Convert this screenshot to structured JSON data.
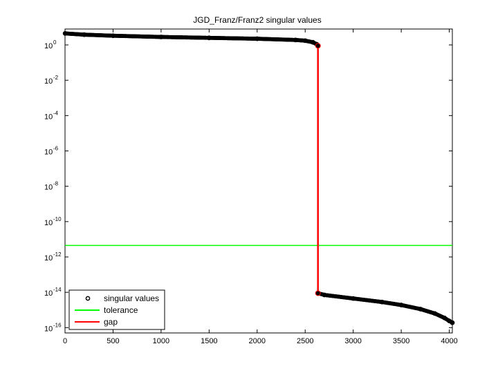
{
  "chart_data": {
    "type": "scatter",
    "title": "JGD_Franz/Franz2 singular values",
    "xlabel": "",
    "ylabel": "",
    "xlim": [
      0,
      4032
    ],
    "ylim_log10": [
      -16.3,
      0.9
    ],
    "y_scale": "log",
    "grid": false,
    "legend_position": "bottom-left",
    "x_ticks": [
      0,
      500,
      1000,
      1500,
      2000,
      2500,
      3000,
      3500,
      4000
    ],
    "x_tick_labels": [
      "0",
      "500",
      "1000",
      "1500",
      "2000",
      "2500",
      "3000",
      "3500",
      "4000"
    ],
    "y_tick_exponents": [
      0,
      -2,
      -4,
      -6,
      -8,
      -10,
      -12,
      -14,
      -16
    ],
    "y_tick_labels": [
      "10",
      "10",
      "10",
      "10",
      "10",
      "10",
      "10",
      "10",
      "10"
    ],
    "y_tick_superscripts": [
      "0",
      "-2",
      "-4",
      "-6",
      "-8",
      "-10",
      "-12",
      "-14",
      "-16"
    ],
    "series": [
      {
        "name": "singular values",
        "marker": "circle",
        "color": "#000000",
        "segments": [
          {
            "points": [
              [
                1,
                0.65
              ],
              [
                200,
                0.58
              ],
              [
                500,
                0.52
              ],
              [
                1000,
                0.45
              ],
              [
                1500,
                0.4
              ],
              [
                2000,
                0.35
              ],
              [
                2400,
                0.28
              ],
              [
                2500,
                0.24
              ],
              [
                2580,
                0.15
              ],
              [
                2620,
                0.04
              ],
              [
                2633,
                -0.05
              ]
            ]
          },
          {
            "points": [
              [
                2634,
                -14.05
              ],
              [
                2700,
                -14.15
              ],
              [
                3000,
                -14.35
              ],
              [
                3300,
                -14.55
              ],
              [
                3500,
                -14.72
              ],
              [
                3700,
                -14.95
              ],
              [
                3850,
                -15.2
              ],
              [
                3950,
                -15.45
              ],
              [
                4000,
                -15.62
              ],
              [
                4032,
                -15.72
              ]
            ]
          }
        ]
      },
      {
        "name": "tolerance",
        "color": "#00ff00",
        "y_log10": -11.35
      },
      {
        "name": "gap",
        "color": "#ff0000",
        "x": 2633,
        "y_log10_range": [
          -14.05,
          -0.05
        ]
      }
    ]
  }
}
